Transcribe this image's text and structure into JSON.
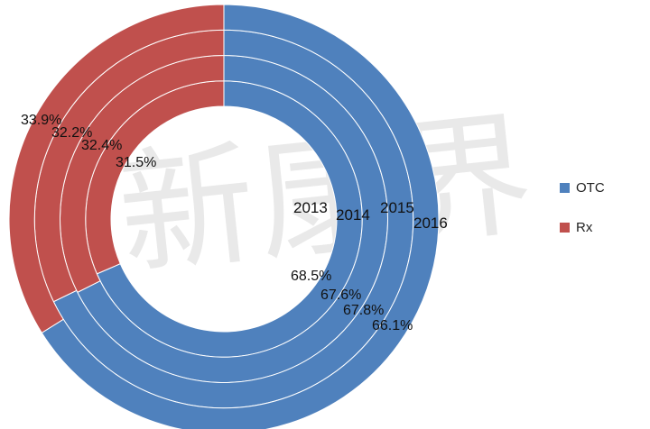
{
  "watermark": "新康界",
  "chart_data": {
    "type": "pie",
    "subtype": "multi-ring doughnut",
    "rings": [
      "2013",
      "2014",
      "2015",
      "2016"
    ],
    "series": [
      {
        "name": "OTC",
        "color": "#4F81BD",
        "values": [
          68.5,
          67.6,
          67.8,
          66.1
        ],
        "labels": [
          "68.5%",
          "67.6%",
          "67.8%",
          "66.1%"
        ]
      },
      {
        "name": "Rx",
        "color": "#C0504D",
        "values": [
          31.5,
          32.4,
          32.2,
          33.9
        ],
        "labels": [
          "31.5%",
          "32.4%",
          "32.2%",
          "33.9%"
        ]
      }
    ],
    "legend_position": "right"
  }
}
